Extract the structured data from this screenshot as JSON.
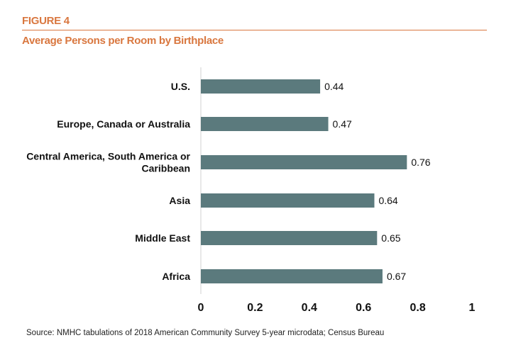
{
  "figure_label": "FIGURE 4",
  "source": "Source: NMHC tabulations of 2018 American Community Survey 5-year microdata; Census Bureau",
  "chart_data": {
    "type": "bar",
    "orientation": "horizontal",
    "title": "Average Persons per Room by Birthplace",
    "categories": [
      [
        "U.S."
      ],
      [
        "Europe, Canada or Australia"
      ],
      [
        "Central America, South America or",
        "Caribbean"
      ],
      [
        "Asia"
      ],
      [
        "Middle East"
      ],
      [
        "Africa"
      ]
    ],
    "values": [
      0.44,
      0.47,
      0.76,
      0.64,
      0.65,
      0.67
    ],
    "value_labels": [
      "0.44",
      "0.47",
      "0.76",
      "0.64",
      "0.65",
      "0.67"
    ],
    "xlim": [
      0,
      1
    ],
    "xticks": [
      "0",
      "0.2",
      "0.4",
      "0.6",
      "0.8",
      "1"
    ],
    "xtick_values": [
      0,
      0.2,
      0.4,
      0.6,
      0.8,
      1
    ],
    "grid": false,
    "colors": {
      "bar": "#5b7a7d",
      "accent": "#d9773f"
    }
  }
}
